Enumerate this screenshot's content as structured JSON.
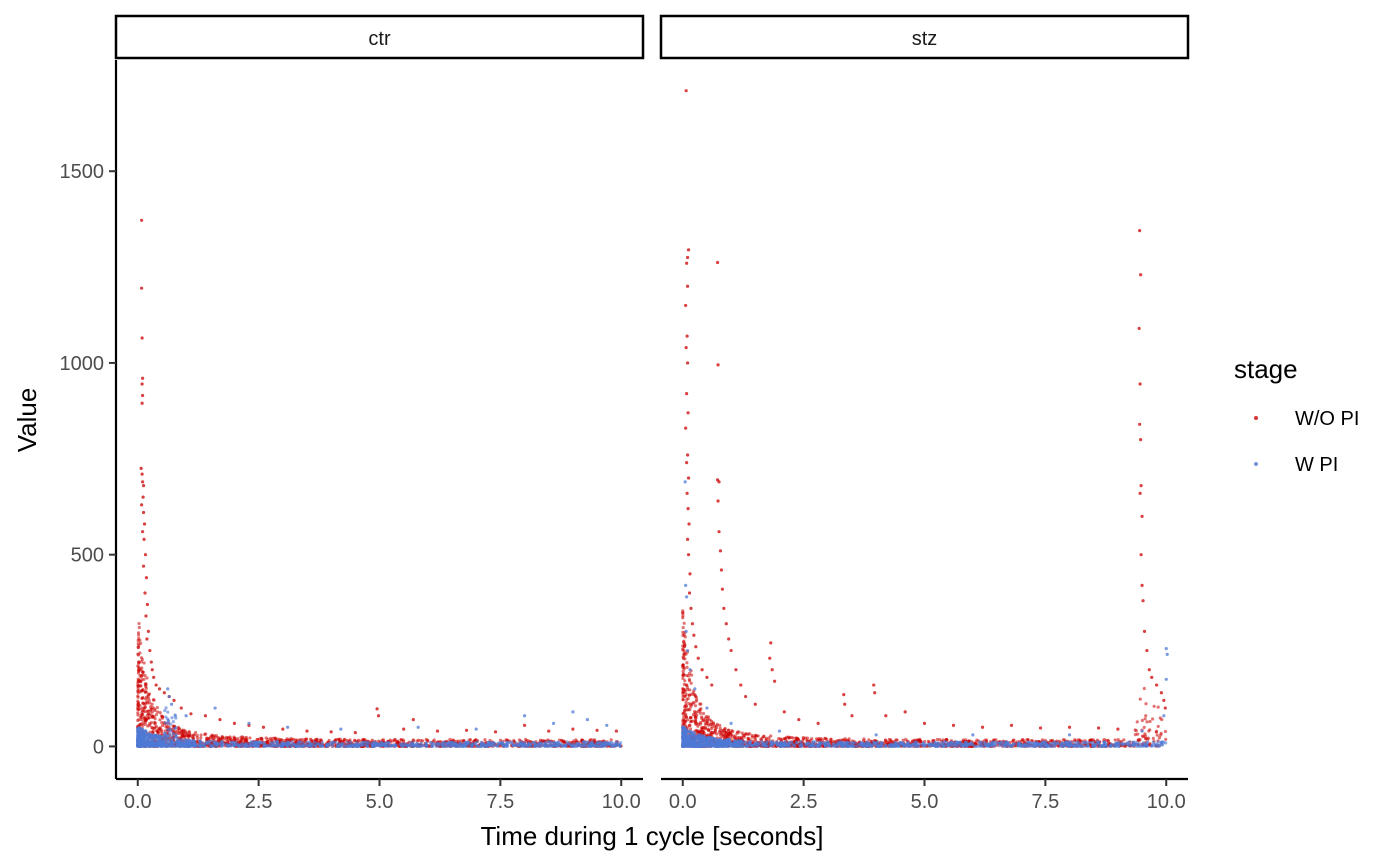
{
  "chart_data": {
    "type": "scatter",
    "xlabel": "Time during 1 cycle [seconds]",
    "ylabel": "Value",
    "xlim": [
      -0.45,
      10.45
    ],
    "ylim": [
      -85,
      1790
    ],
    "x_ticks": [
      0,
      2.5,
      5,
      7.5,
      10
    ],
    "x_tick_labels": [
      "0.0",
      "2.5",
      "5.0",
      "7.5",
      "10.0"
    ],
    "y_ticks": [
      0,
      500,
      1000,
      1500
    ],
    "y_tick_labels": [
      "0",
      "500",
      "1000",
      "1500"
    ],
    "grid": false,
    "legend": {
      "title": "stage",
      "placement": "right",
      "entries": [
        {
          "label": "W/O PI",
          "color": "#cc0000"
        },
        {
          "label": "W PI",
          "color": "#4f7ad6"
        }
      ]
    },
    "panels": [
      {
        "label": "ctr",
        "series": [
          {
            "name": "W/O PI",
            "color": "#cc0000",
            "points": [
              [
                0.08,
                1372
              ],
              [
                0.08,
                1195
              ],
              [
                0.09,
                1065
              ],
              [
                0.1,
                960
              ],
              [
                0.09,
                945
              ],
              [
                0.1,
                915
              ],
              [
                0.09,
                895
              ],
              [
                0.07,
                725
              ],
              [
                0.09,
                710
              ],
              [
                0.1,
                690
              ],
              [
                0.12,
                680
              ],
              [
                0.11,
                650
              ],
              [
                0.08,
                630
              ],
              [
                0.12,
                610
              ],
              [
                0.14,
                580
              ],
              [
                0.1,
                560
              ],
              [
                0.13,
                540
              ],
              [
                0.16,
                500
              ],
              [
                0.12,
                470
              ],
              [
                0.18,
                440
              ],
              [
                0.15,
                400
              ],
              [
                0.2,
                370
              ],
              [
                0.17,
                340
              ],
              [
                0.22,
                300
              ],
              [
                0.19,
                280
              ],
              [
                0.25,
                250
              ],
              [
                0.28,
                220
              ],
              [
                0.3,
                200
              ],
              [
                0.33,
                180
              ],
              [
                0.38,
                160
              ],
              [
                0.45,
                150
              ],
              [
                0.55,
                140
              ],
              [
                0.65,
                130
              ],
              [
                0.75,
                120
              ],
              [
                0.9,
                100
              ],
              [
                1.1,
                85
              ],
              [
                1.4,
                80
              ],
              [
                1.7,
                70
              ],
              [
                2.0,
                60
              ],
              [
                2.3,
                55
              ],
              [
                2.6,
                50
              ],
              [
                3.0,
                45
              ],
              [
                3.5,
                40
              ],
              [
                4.0,
                38
              ],
              [
                4.5,
                36
              ],
              [
                4.95,
                98
              ],
              [
                4.98,
                80
              ],
              [
                5.5,
                45
              ],
              [
                5.7,
                70
              ],
              [
                6.2,
                40
              ],
              [
                6.8,
                42
              ],
              [
                7.4,
                38
              ],
              [
                8.0,
                55
              ],
              [
                8.5,
                40
              ],
              [
                9.0,
                45
              ],
              [
                9.5,
                42
              ],
              [
                9.9,
                40
              ]
            ]
          },
          {
            "name": "W PI",
            "color": "#4f7ad6",
            "points": [
              [
                0.62,
                150
              ],
              [
                0.65,
                130
              ],
              [
                0.7,
                110
              ],
              [
                1.0,
                80
              ],
              [
                1.6,
                100
              ],
              [
                2.3,
                60
              ],
              [
                3.1,
                50
              ],
              [
                4.2,
                45
              ],
              [
                5.8,
                50
              ],
              [
                7.0,
                45
              ],
              [
                8.0,
                80
              ],
              [
                8.6,
                60
              ],
              [
                9.0,
                90
              ],
              [
                9.3,
                70
              ],
              [
                9.7,
                55
              ]
            ]
          }
        ]
      },
      {
        "label": "stz",
        "series": [
          {
            "name": "W/O PI",
            "color": "#cc0000",
            "points": [
              [
                0.07,
                1710
              ],
              [
                0.12,
                1295
              ],
              [
                0.1,
                1275
              ],
              [
                0.08,
                1260
              ],
              [
                0.1,
                1200
              ],
              [
                0.06,
                1150
              ],
              [
                0.09,
                1070
              ],
              [
                0.07,
                1040
              ],
              [
                0.1,
                1000
              ],
              [
                0.08,
                920
              ],
              [
                0.11,
                870
              ],
              [
                0.06,
                830
              ],
              [
                0.1,
                760
              ],
              [
                0.08,
                740
              ],
              [
                0.12,
                700
              ],
              [
                0.09,
                660
              ],
              [
                0.11,
                620
              ],
              [
                0.13,
                580
              ],
              [
                0.1,
                540
              ],
              [
                0.12,
                500
              ],
              [
                0.15,
                450
              ],
              [
                0.14,
                400
              ],
              [
                0.17,
                360
              ],
              [
                0.2,
                320
              ],
              [
                0.23,
                290
              ],
              [
                0.27,
                260
              ],
              [
                0.32,
                230
              ],
              [
                0.4,
                200
              ],
              [
                0.5,
                180
              ],
              [
                0.6,
                160
              ],
              [
                0.72,
                1262
              ],
              [
                0.73,
                995
              ],
              [
                0.72,
                695
              ],
              [
                0.75,
                690
              ],
              [
                0.73,
                640
              ],
              [
                0.75,
                560
              ],
              [
                0.78,
                510
              ],
              [
                0.8,
                460
              ],
              [
                0.82,
                410
              ],
              [
                0.85,
                360
              ],
              [
                0.9,
                320
              ],
              [
                0.95,
                280
              ],
              [
                1.0,
                250
              ],
              [
                1.1,
                200
              ],
              [
                1.2,
                160
              ],
              [
                1.3,
                130
              ],
              [
                1.5,
                110
              ],
              [
                1.82,
                270
              ],
              [
                1.8,
                230
              ],
              [
                1.85,
                200
              ],
              [
                1.9,
                170
              ],
              [
                2.1,
                90
              ],
              [
                2.4,
                70
              ],
              [
                2.8,
                60
              ],
              [
                3.33,
                135
              ],
              [
                3.35,
                110
              ],
              [
                3.5,
                80
              ],
              [
                3.95,
                160
              ],
              [
                3.97,
                140
              ],
              [
                4.2,
                80
              ],
              [
                4.6,
                90
              ],
              [
                5.0,
                60
              ],
              [
                5.6,
                55
              ],
              [
                6.2,
                50
              ],
              [
                6.8,
                55
              ],
              [
                7.4,
                48
              ],
              [
                8.0,
                50
              ],
              [
                8.6,
                48
              ],
              [
                9.0,
                45
              ],
              [
                9.45,
                1345
              ],
              [
                9.47,
                1230
              ],
              [
                9.44,
                1090
              ],
              [
                9.46,
                945
              ],
              [
                9.45,
                840
              ],
              [
                9.47,
                800
              ],
              [
                9.48,
                680
              ],
              [
                9.46,
                660
              ],
              [
                9.5,
                600
              ],
              [
                9.48,
                500
              ],
              [
                9.5,
                420
              ],
              [
                9.52,
                380
              ],
              [
                9.55,
                300
              ],
              [
                9.6,
                250
              ],
              [
                9.65,
                200
              ],
              [
                9.7,
                180
              ],
              [
                9.8,
                160
              ],
              [
                9.9,
                140
              ],
              [
                9.95,
                120
              ],
              [
                9.98,
                100
              ]
            ]
          },
          {
            "name": "W PI",
            "color": "#4f7ad6",
            "points": [
              [
                0.05,
                690
              ],
              [
                0.06,
                420
              ],
              [
                0.08,
                390
              ],
              [
                0.07,
                300
              ],
              [
                0.1,
                250
              ],
              [
                0.15,
                200
              ],
              [
                0.25,
                150
              ],
              [
                0.5,
                100
              ],
              [
                1.0,
                60
              ],
              [
                2.0,
                40
              ],
              [
                4.0,
                30
              ],
              [
                6.0,
                30
              ],
              [
                8.0,
                30
              ],
              [
                9.5,
                40
              ],
              [
                10.0,
                255
              ],
              [
                10.02,
                240
              ],
              [
                10.0,
                175
              ],
              [
                9.95,
                80
              ]
            ]
          }
        ]
      }
    ]
  }
}
